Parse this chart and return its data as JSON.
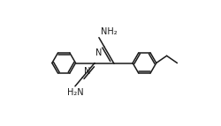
{
  "bg_color": "#ffffff",
  "line_color": "#1a1a1a",
  "line_width": 1.1,
  "font_size": 7.0,
  "fig_width": 2.51,
  "fig_height": 1.43,
  "dpi": 100,
  "xlim": [
    -2.3,
    2.6
  ],
  "ylim": [
    -1.05,
    1.05
  ]
}
